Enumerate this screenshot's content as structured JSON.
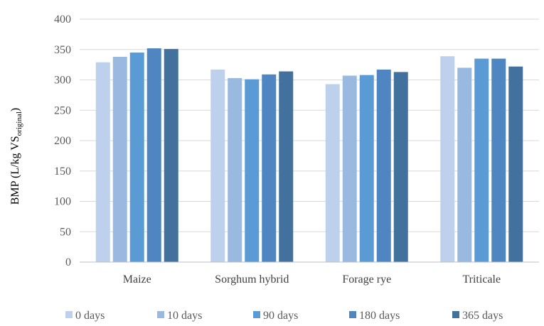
{
  "chart_data": {
    "type": "bar",
    "title": "",
    "xlabel": "",
    "ylabel": {
      "main": "BMP",
      "unit_prefix": " (L/kg VS",
      "unit_sub": "original",
      "unit_suffix": ")"
    },
    "ylim": [
      0,
      400
    ],
    "yticks": [
      0,
      50,
      100,
      150,
      200,
      250,
      300,
      350,
      400
    ],
    "grid": true,
    "legend_position": "bottom",
    "categories": [
      "Maize",
      "Sorghum hybrid",
      "Forage rye",
      "Triticale"
    ],
    "series": [
      {
        "name": "0 days",
        "color": "#bdd1ec",
        "values": [
          329,
          317,
          293,
          339
        ]
      },
      {
        "name": "10 days",
        "color": "#9ab9e0",
        "values": [
          338,
          303,
          307,
          320
        ]
      },
      {
        "name": "90 days",
        "color": "#5b9bd5",
        "values": [
          345,
          301,
          308,
          335
        ]
      },
      {
        "name": "180 days",
        "color": "#4f86c1",
        "values": [
          352,
          309,
          317,
          335
        ]
      },
      {
        "name": "365 days",
        "color": "#41719c",
        "values": [
          351,
          314,
          313,
          322
        ]
      }
    ]
  },
  "colors": {
    "grid": "#d9d9d9",
    "axis": "#bfbfbf"
  }
}
